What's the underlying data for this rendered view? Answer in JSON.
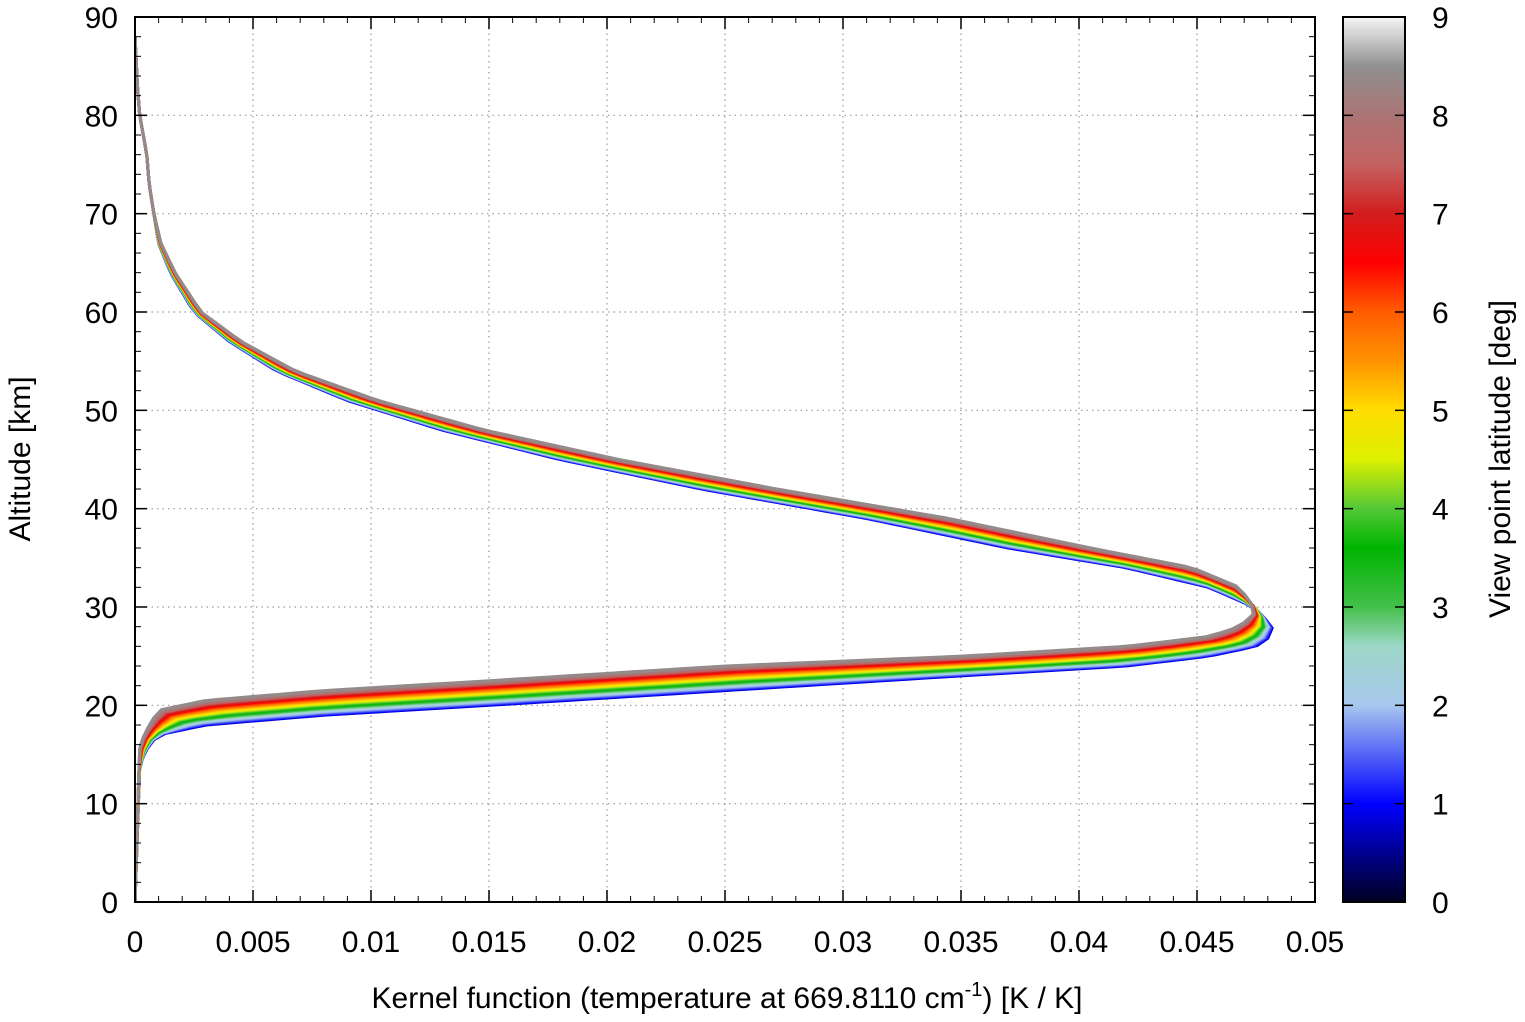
{
  "chart_data": {
    "type": "line",
    "title": "",
    "xlabel_prefix": "Kernel function (temperature at 669.8110 cm",
    "xlabel_sup": "-1",
    "xlabel_suffix": ") [K / K]",
    "ylabel": "Altitude [km]",
    "colorbar_label": "View point latitude [deg]",
    "xlim": [
      0,
      0.05
    ],
    "ylim": [
      0,
      90
    ],
    "colorbar_range": [
      0,
      9
    ],
    "x_ticks": [
      0,
      0.005,
      0.01,
      0.015,
      0.02,
      0.025,
      0.03,
      0.035,
      0.04,
      0.045,
      0.05
    ],
    "x_tick_labels": [
      "0",
      "0.005",
      "0.01",
      "0.015",
      "0.02",
      "0.025",
      "0.03",
      "0.035",
      "0.04",
      "0.045",
      "0.05"
    ],
    "y_ticks": [
      0,
      10,
      20,
      30,
      40,
      50,
      60,
      70,
      80,
      90
    ],
    "y_tick_labels": [
      "0",
      "10",
      "20",
      "30",
      "40",
      "50",
      "60",
      "70",
      "80",
      "90"
    ],
    "colorbar_ticks": [
      0,
      1,
      2,
      3,
      4,
      5,
      6,
      7,
      8,
      9
    ],
    "colorbar_tick_labels": [
      "0",
      "1",
      "2",
      "3",
      "4",
      "5",
      "6",
      "7",
      "8",
      "9"
    ],
    "grid": true,
    "colormap": [
      {
        "v": 0,
        "color": "#000020"
      },
      {
        "v": 1,
        "color": "#0000ff"
      },
      {
        "v": 2,
        "color": "#a7c7ee"
      },
      {
        "v": 2.6,
        "color": "#9dd7c7"
      },
      {
        "v": 3,
        "color": "#44c04a"
      },
      {
        "v": 3.6,
        "color": "#00b400"
      },
      {
        "v": 4,
        "color": "#52c836"
      },
      {
        "v": 4.5,
        "color": "#ddf000"
      },
      {
        "v": 5,
        "color": "#ffdd00"
      },
      {
        "v": 5.5,
        "color": "#ff9300"
      },
      {
        "v": 6,
        "color": "#ff5c00"
      },
      {
        "v": 6.5,
        "color": "#ff0000"
      },
      {
        "v": 7,
        "color": "#d21d1d"
      },
      {
        "v": 7.5,
        "color": "#c46262"
      },
      {
        "v": 8,
        "color": "#aa7474"
      },
      {
        "v": 8.5,
        "color": "#909090"
      },
      {
        "v": 9,
        "color": "#f6f6f6"
      }
    ],
    "series": [
      {
        "latitude": 0.8,
        "x": [
          0,
          0.0001,
          0.0002,
          0.0005,
          0.0006,
          0.0008,
          0.001,
          0.0015,
          0.0025,
          0.004,
          0.006,
          0.009,
          0.013,
          0.018,
          0.024,
          0.031,
          0.037,
          0.042,
          0.0455,
          0.0474,
          0.0482,
          0.0481,
          0.0475,
          0.0455,
          0.042,
          0.035,
          0.025,
          0.015,
          0.008,
          0.003,
          0.001,
          0.0006,
          0.0002,
          0.0
        ],
        "y": [
          88,
          83,
          80,
          76,
          73,
          70,
          67,
          64,
          60,
          57,
          54,
          51,
          48,
          45,
          42,
          39,
          36,
          34,
          32,
          30,
          28,
          27,
          26,
          25,
          24,
          23,
          21.5,
          20,
          19,
          18,
          17,
          16,
          14,
          0
        ]
      },
      {
        "latitude": 8.4,
        "x": [
          0,
          0.0001,
          0.0002,
          0.0005,
          0.0006,
          0.0008,
          0.0011,
          0.0017,
          0.0028,
          0.0045,
          0.0068,
          0.0103,
          0.0148,
          0.0205,
          0.0272,
          0.0345,
          0.0405,
          0.0448,
          0.0468,
          0.0474,
          0.0474,
          0.0468,
          0.0455,
          0.042,
          0.035,
          0.025,
          0.015,
          0.008,
          0.003,
          0.001,
          0.0006,
          0.0002,
          0.0
        ],
        "y": [
          88,
          83,
          80,
          76,
          73,
          70,
          67,
          64,
          60,
          57,
          54,
          51,
          48,
          45,
          42,
          39,
          36,
          34,
          32,
          30,
          29.3,
          28,
          27,
          26,
          25,
          24,
          22.5,
          21.5,
          20.5,
          19.5,
          18,
          16,
          0
        ]
      }
    ]
  }
}
